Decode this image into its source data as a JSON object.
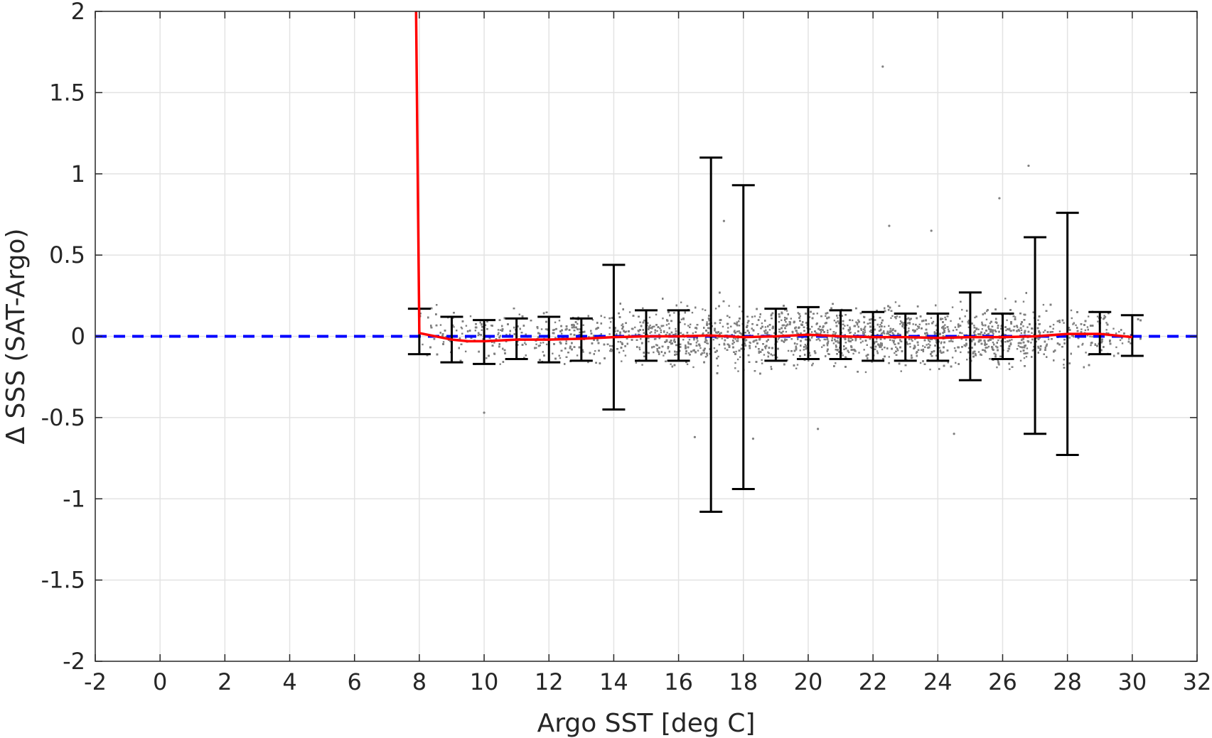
{
  "chart_data": {
    "type": "scatter",
    "title": "",
    "xlabel": "Argo SST [deg C]",
    "ylabel": "Δ SSS (SAT-Argo)",
    "xlim": [
      -2,
      32
    ],
    "ylim": [
      -2,
      2
    ],
    "grid": true,
    "x_ticks": [
      -2,
      0,
      2,
      4,
      6,
      8,
      10,
      12,
      14,
      16,
      18,
      20,
      22,
      24,
      26,
      28,
      30,
      32
    ],
    "y_ticks": [
      -2,
      -1.5,
      -1,
      -0.5,
      0,
      0.5,
      1,
      1.5,
      2
    ],
    "x_tick_labels": [
      "-2",
      "0",
      "2",
      "4",
      "6",
      "8",
      "10",
      "12",
      "14",
      "16",
      "18",
      "20",
      "22",
      "24",
      "26",
      "28",
      "30",
      "32"
    ],
    "y_tick_labels": [
      "-2",
      "-1.5",
      "-1",
      "-0.5",
      "0",
      "0.5",
      "1",
      "1.5",
      "2"
    ],
    "scatter": {
      "color": "#808080",
      "x_range": [
        8,
        30.5
      ],
      "description_density": [
        {
          "x": 8.5,
          "mean": 0.02,
          "spread": 0.12,
          "weight": 0.25
        },
        {
          "x": 10,
          "mean": -0.02,
          "spread": 0.12,
          "weight": 0.45
        },
        {
          "x": 12,
          "mean": -0.01,
          "spread": 0.13,
          "weight": 0.55
        },
        {
          "x": 14,
          "mean": 0.0,
          "spread": 0.13,
          "weight": 0.6
        },
        {
          "x": 16,
          "mean": 0.01,
          "spread": 0.14,
          "weight": 0.75
        },
        {
          "x": 18,
          "mean": 0.0,
          "spread": 0.14,
          "weight": 0.85
        },
        {
          "x": 20,
          "mean": 0.01,
          "spread": 0.14,
          "weight": 0.95
        },
        {
          "x": 22,
          "mean": 0.0,
          "spread": 0.14,
          "weight": 1.0
        },
        {
          "x": 24,
          "mean": 0.0,
          "spread": 0.14,
          "weight": 1.0
        },
        {
          "x": 26,
          "mean": 0.0,
          "spread": 0.14,
          "weight": 1.0
        },
        {
          "x": 28,
          "mean": 0.01,
          "spread": 0.13,
          "weight": 0.7
        },
        {
          "x": 30,
          "mean": 0.0,
          "spread": 0.1,
          "weight": 0.15
        }
      ],
      "outliers": [
        {
          "x": 22.3,
          "y": 1.66
        },
        {
          "x": 26.8,
          "y": 1.05
        },
        {
          "x": 25.9,
          "y": 0.85
        },
        {
          "x": 17.4,
          "y": 0.71
        },
        {
          "x": 22.5,
          "y": 0.68
        },
        {
          "x": 23.8,
          "y": 0.65
        },
        {
          "x": 16.5,
          "y": -0.62
        },
        {
          "x": 18.3,
          "y": -0.63
        },
        {
          "x": 24.5,
          "y": -0.6
        },
        {
          "x": 20.3,
          "y": -0.57
        },
        {
          "x": 10,
          "y": -0.47
        }
      ]
    },
    "errorbars": {
      "color": "#000000",
      "points": [
        {
          "x": 8,
          "upper": 0.17,
          "lower": -0.11
        },
        {
          "x": 9,
          "upper": 0.12,
          "lower": -0.16
        },
        {
          "x": 10,
          "upper": 0.1,
          "lower": -0.17
        },
        {
          "x": 11,
          "upper": 0.11,
          "lower": -0.14
        },
        {
          "x": 12,
          "upper": 0.12,
          "lower": -0.16
        },
        {
          "x": 13,
          "upper": 0.11,
          "lower": -0.15
        },
        {
          "x": 14,
          "upper": 0.44,
          "lower": -0.45
        },
        {
          "x": 15,
          "upper": 0.16,
          "lower": -0.15
        },
        {
          "x": 16,
          "upper": 0.16,
          "lower": -0.15
        },
        {
          "x": 17,
          "upper": 1.1,
          "lower": -1.08
        },
        {
          "x": 18,
          "upper": 0.93,
          "lower": -0.94
        },
        {
          "x": 19,
          "upper": 0.17,
          "lower": -0.15
        },
        {
          "x": 20,
          "upper": 0.18,
          "lower": -0.14
        },
        {
          "x": 21,
          "upper": 0.16,
          "lower": -0.14
        },
        {
          "x": 22,
          "upper": 0.15,
          "lower": -0.15
        },
        {
          "x": 23,
          "upper": 0.14,
          "lower": -0.15
        },
        {
          "x": 24,
          "upper": 0.14,
          "lower": -0.15
        },
        {
          "x": 25,
          "upper": 0.27,
          "lower": -0.27
        },
        {
          "x": 26,
          "upper": 0.14,
          "lower": -0.14
        },
        {
          "x": 27,
          "upper": 0.61,
          "lower": -0.6
        },
        {
          "x": 28,
          "upper": 0.76,
          "lower": -0.73
        },
        {
          "x": 29,
          "upper": 0.15,
          "lower": -0.11
        },
        {
          "x": 30,
          "upper": 0.13,
          "lower": -0.12
        }
      ]
    },
    "mean_line": {
      "color": "#ff0000",
      "x": [
        7.9,
        8.0,
        9,
        9.5,
        10,
        11,
        12,
        13,
        14,
        15,
        16,
        17,
        18,
        19,
        20,
        21,
        22,
        23,
        24,
        25,
        26,
        27,
        28,
        29,
        30
      ],
      "y": [
        2.0,
        0.02,
        -0.02,
        -0.03,
        -0.03,
        -0.02,
        -0.02,
        -0.015,
        -0.005,
        0.0,
        0.0,
        0.005,
        -0.005,
        0.0,
        0.01,
        0.0,
        -0.005,
        -0.005,
        -0.01,
        -0.005,
        -0.005,
        0.0,
        0.015,
        0.015,
        -0.005
      ]
    },
    "reference_line": {
      "y": 0,
      "color": "#0000ff",
      "style": "dashed"
    }
  }
}
